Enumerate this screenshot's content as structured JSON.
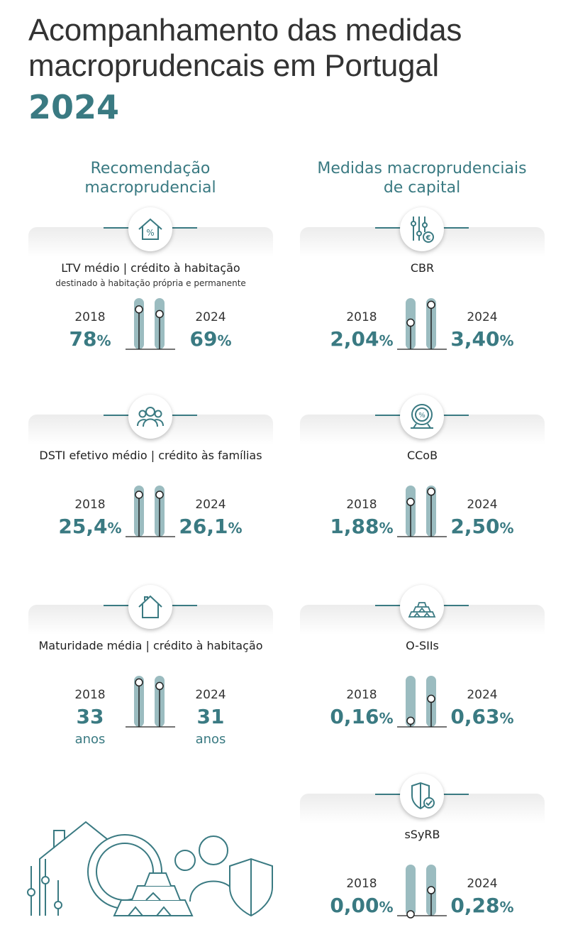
{
  "title": {
    "line1": "Acompanhamento das medidas",
    "line2": "macroprudencais em Portugal",
    "year": "2024"
  },
  "left_column": {
    "heading_line1": "Recomendação",
    "heading_line2": "macroprudencial",
    "items": [
      {
        "icon": "house-percent-icon",
        "label": "LTV médio | crédito à habitação",
        "sublabel": "destinado à habitação própria e permanente",
        "year_a": "2018",
        "value_a": "78",
        "suffix_a": "%",
        "level_a": 0.78,
        "year_b": "2024",
        "value_b": "69",
        "suffix_b": "%",
        "level_b": 0.69
      },
      {
        "icon": "people-icon",
        "label": "DSTI efetivo médio | crédito às famílias",
        "year_a": "2018",
        "value_a": "25,4",
        "suffix_a": "%",
        "level_a": 0.82,
        "year_b": "2024",
        "value_b": "26,1",
        "suffix_b": "%",
        "level_b": 0.82
      },
      {
        "icon": "house-icon",
        "label": "Maturidade média | crédito à habitação",
        "year_a": "2018",
        "value_a": "33",
        "unit_a": "anos",
        "level_a": 0.87,
        "year_b": "2024",
        "value_b": "31",
        "unit_b": "anos",
        "level_b": 0.8
      }
    ]
  },
  "right_column": {
    "heading_line1": "Medidas macroprudenciais",
    "heading_line2": "de capital",
    "items": [
      {
        "icon": "sliders-euro-icon",
        "label": "CBR",
        "year_a": "2018",
        "value_a": "2,04",
        "suffix_a": "%",
        "level_a": 0.52,
        "year_b": "2024",
        "value_b": "3,40",
        "suffix_b": "%",
        "level_b": 0.87
      },
      {
        "icon": "percent-scale-icon",
        "label": "CCoB",
        "year_a": "2018",
        "value_a": "1,88",
        "suffix_a": "%",
        "level_a": 0.68,
        "year_b": "2024",
        "value_b": "2,50",
        "suffix_b": "%",
        "level_b": 0.88
      },
      {
        "icon": "gold-bars-icon",
        "label": "O-SIIs",
        "year_a": "2018",
        "value_a": "0,16",
        "suffix_a": "%",
        "level_a": 0.12,
        "year_b": "2024",
        "value_b": "0,63",
        "suffix_b": "%",
        "level_b": 0.55
      },
      {
        "icon": "shield-check-icon",
        "label": "sSyRB",
        "year_a": "2018",
        "value_a": "0,00",
        "suffix_a": "%",
        "level_a": 0.0,
        "year_b": "2024",
        "value_b": "0,28",
        "suffix_b": "%",
        "level_b": 0.5
      }
    ]
  },
  "colors": {
    "accent": "#3a7a82",
    "bar": "#9bbcc0"
  }
}
